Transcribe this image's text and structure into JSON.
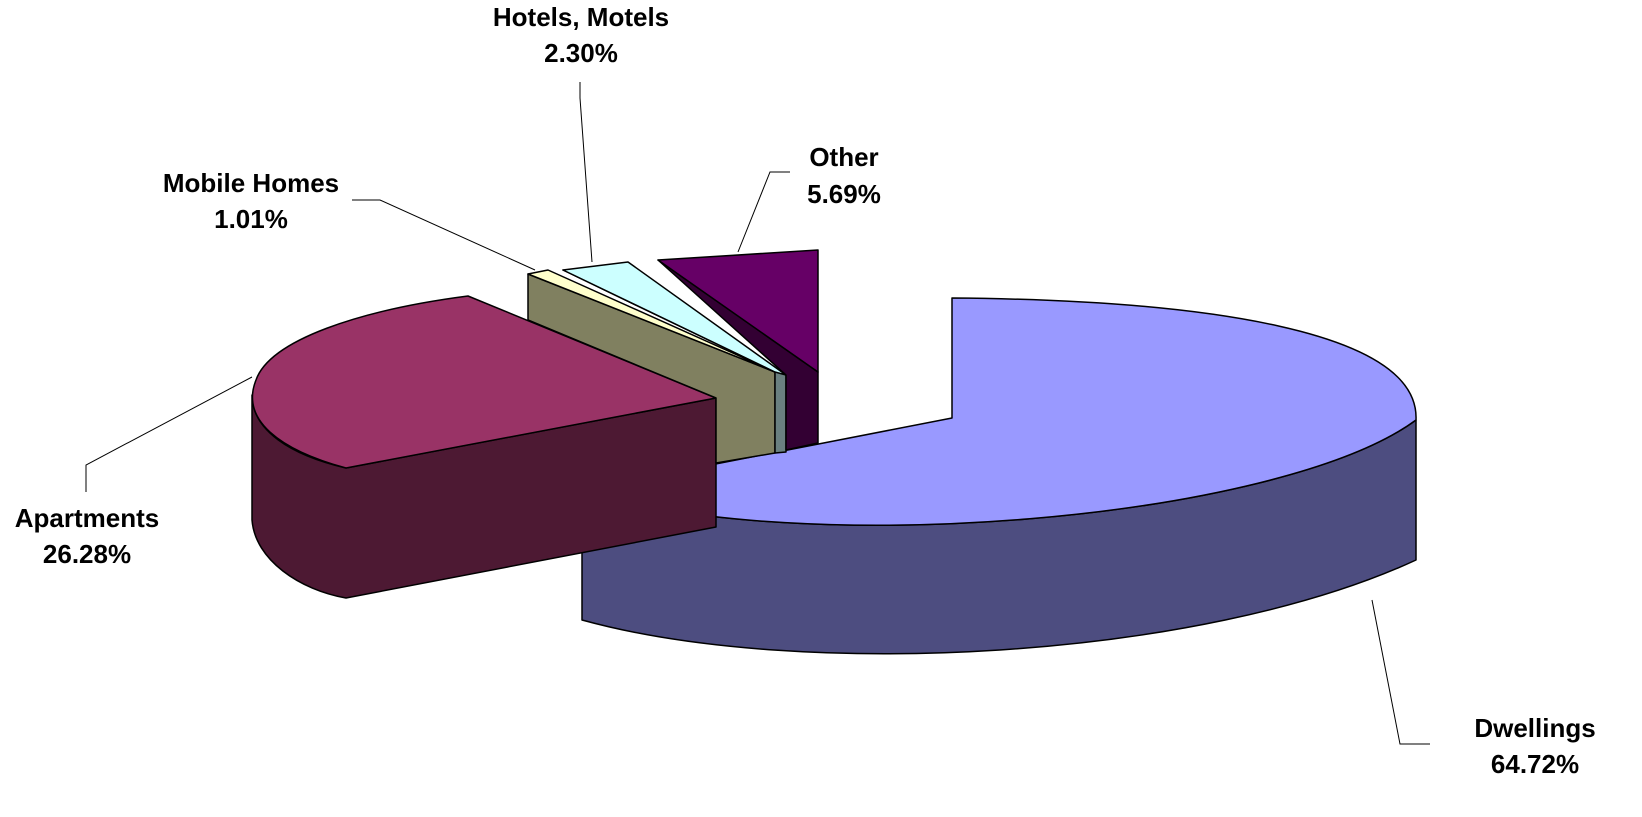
{
  "chart_data": {
    "type": "pie",
    "style": "3d-exploded",
    "title": "",
    "legend": "none",
    "slices": [
      {
        "label": "Dwellings",
        "value": 64.72,
        "value_label": "64.72%",
        "top_color": "#9999ff",
        "side_color": "#4d4d80"
      },
      {
        "label": "Apartments",
        "value": 26.28,
        "value_label": "26.28%",
        "top_color": "#993366",
        "side_color": "#4d1933"
      },
      {
        "label": "",
        "value": 4.0,
        "value_label": "",
        "top_color": "#808060",
        "side_color": "#808060"
      },
      {
        "label": "Mobile Homes",
        "value": 1.01,
        "value_label": "1.01%",
        "top_color": "#ffffcc",
        "side_color": "#80806a"
      },
      {
        "label": "Hotels, Motels",
        "value": 2.3,
        "value_label": "2.30%",
        "top_color": "#ccffff",
        "side_color": "#6a8080"
      },
      {
        "label": "Other",
        "value": 5.69,
        "value_label": "5.69%",
        "top_color": "#660066",
        "side_color": "#330033"
      }
    ]
  }
}
